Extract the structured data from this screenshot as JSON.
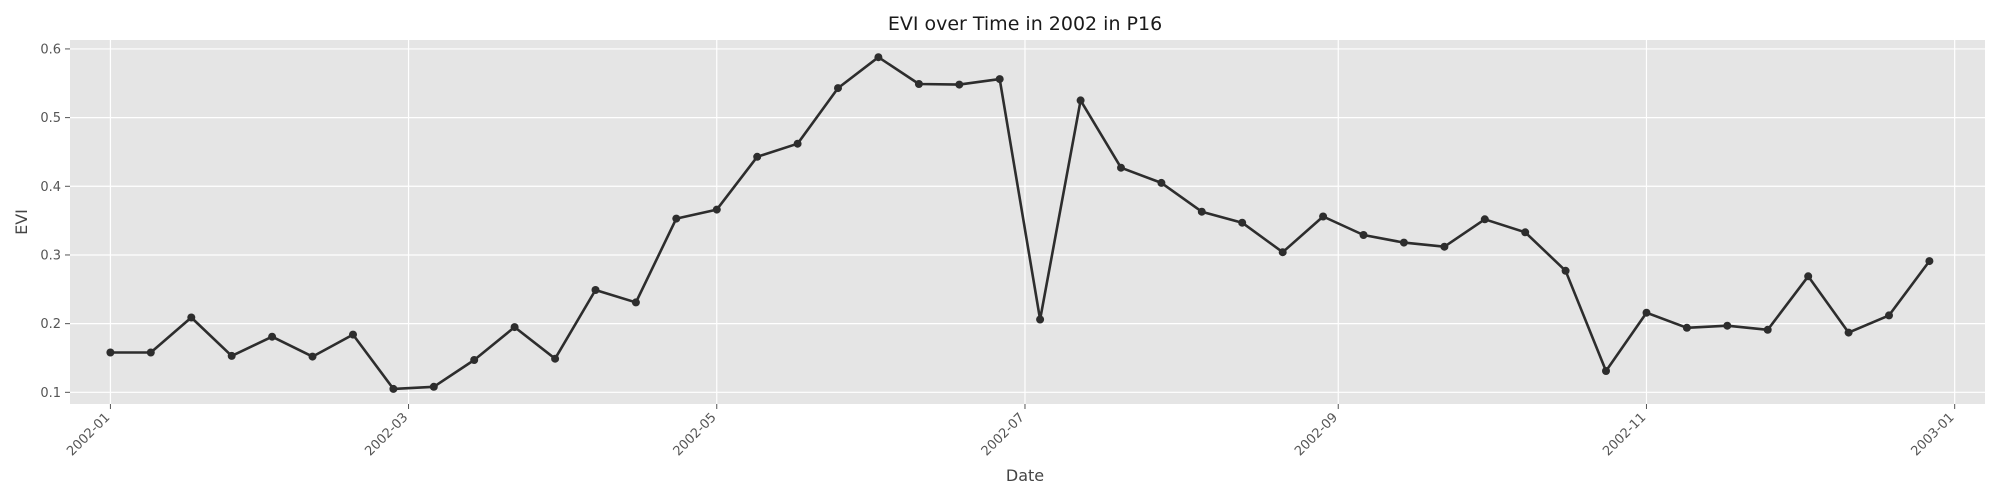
{
  "chart_data": {
    "type": "line",
    "title": "EVI over Time in 2002 in P16",
    "xlabel": "Date",
    "ylabel": "EVI",
    "grid": true,
    "x_range": [
      "2001-12-24",
      "2003-01-07"
    ],
    "y_range": [
      0.083,
      0.613
    ],
    "x_ticks": [
      "2002-01",
      "2002-03",
      "2002-05",
      "2002-07",
      "2002-09",
      "2002-11",
      "2003-01"
    ],
    "y_ticks": [
      "0.1",
      "0.2",
      "0.3",
      "0.4",
      "0.5",
      "0.6"
    ],
    "y_tick_values": [
      0.1,
      0.2,
      0.3,
      0.4,
      0.5,
      0.6
    ],
    "series": [
      {
        "color": "#2d2d2d",
        "x": [
          "2002-01-01",
          "2002-01-09",
          "2002-01-17",
          "2002-01-25",
          "2002-02-02",
          "2002-02-10",
          "2002-02-18",
          "2002-02-26",
          "2002-03-06",
          "2002-03-14",
          "2002-03-22",
          "2002-03-30",
          "2002-04-07",
          "2002-04-15",
          "2002-04-23",
          "2002-05-01",
          "2002-05-09",
          "2002-05-17",
          "2002-05-25",
          "2002-06-02",
          "2002-06-10",
          "2002-06-18",
          "2002-06-26",
          "2002-07-04",
          "2002-07-12",
          "2002-07-20",
          "2002-07-28",
          "2002-08-05",
          "2002-08-13",
          "2002-08-21",
          "2002-08-29",
          "2002-09-06",
          "2002-09-14",
          "2002-09-22",
          "2002-09-30",
          "2002-10-08",
          "2002-10-16",
          "2002-10-24",
          "2002-11-01",
          "2002-11-09",
          "2002-11-17",
          "2002-11-25",
          "2002-12-03",
          "2002-12-11",
          "2002-12-19",
          "2002-12-27"
        ],
        "y": [
          0.158,
          0.158,
          0.209,
          0.153,
          0.181,
          0.152,
          0.184,
          0.105,
          0.108,
          0.147,
          0.195,
          0.149,
          0.249,
          0.231,
          0.353,
          0.366,
          0.443,
          0.462,
          0.543,
          0.588,
          0.549,
          0.548,
          0.556,
          0.206,
          0.525,
          0.427,
          0.405,
          0.363,
          0.347,
          0.304,
          0.356,
          0.329,
          0.318,
          0.312,
          0.352,
          0.333,
          0.277,
          0.131,
          0.216,
          0.194,
          0.197,
          0.191,
          0.269,
          0.187,
          0.212,
          0.291
        ]
      }
    ]
  }
}
